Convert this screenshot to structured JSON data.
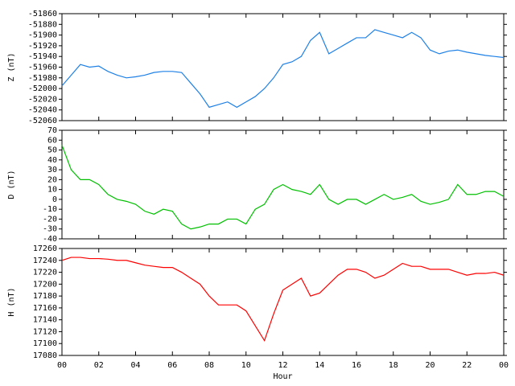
{
  "chart_data": [
    {
      "type": "line",
      "ylabel": "Z (nT)",
      "xlim": [
        0,
        24
      ],
      "ylim": [
        -52060,
        -51860
      ],
      "yticks": [
        -52060,
        -52040,
        -52020,
        -52000,
        -51980,
        -51960,
        -51940,
        -51920,
        -51900,
        -51880,
        -51860
      ],
      "x": [
        0,
        0.5,
        1,
        1.5,
        2,
        2.5,
        3,
        3.5,
        4,
        4.5,
        5,
        5.5,
        6,
        6.5,
        7,
        7.5,
        8,
        8.5,
        9,
        9.5,
        10,
        10.5,
        11,
        11.5,
        12,
        12.5,
        13,
        13.5,
        14,
        14.5,
        15,
        15.5,
        16,
        16.5,
        17,
        17.5,
        18,
        18.5,
        19,
        19.5,
        20,
        20.5,
        21,
        21.5,
        22,
        22.5,
        23,
        23.5,
        24
      ],
      "series": [
        {
          "name": "Z",
          "color": "#1e80e6",
          "values": [
            -51995,
            -51975,
            -51955,
            -51960,
            -51958,
            -51968,
            -51975,
            -51980,
            -51978,
            -51975,
            -51970,
            -51968,
            -51968,
            -51970,
            -51990,
            -52010,
            -52035,
            -52030,
            -52025,
            -52035,
            -52025,
            -52015,
            -52000,
            -51980,
            -51955,
            -51950,
            -51940,
            -51910,
            -51895,
            -51935,
            -51925,
            -51915,
            -51905,
            -51905,
            -51890,
            -51895,
            -51900,
            -51905,
            -51895,
            -51905,
            -51928,
            -51935,
            -51930,
            -51928,
            -51932,
            -51935,
            -51938,
            -51940,
            -51942
          ]
        }
      ]
    },
    {
      "type": "line",
      "ylabel": "D (nT)",
      "xlim": [
        0,
        24
      ],
      "ylim": [
        -40,
        70
      ],
      "yticks": [
        -40,
        -30,
        -20,
        -10,
        0,
        10,
        20,
        30,
        40,
        50,
        60,
        70
      ],
      "x": [
        0,
        0.5,
        1,
        1.5,
        2,
        2.5,
        3,
        3.5,
        4,
        4.5,
        5,
        5.5,
        6,
        6.5,
        7,
        7.5,
        8,
        8.5,
        9,
        9.5,
        10,
        10.5,
        11,
        11.5,
        12,
        12.5,
        13,
        13.5,
        14,
        14.5,
        15,
        15.5,
        16,
        16.5,
        17,
        17.5,
        18,
        18.5,
        19,
        19.5,
        20,
        20.5,
        21,
        21.5,
        22,
        22.5,
        23,
        23.5,
        24
      ],
      "series": [
        {
          "name": "D",
          "color": "#00c000",
          "values": [
            55,
            30,
            20,
            20,
            15,
            5,
            0,
            -2,
            -5,
            -12,
            -15,
            -10,
            -12,
            -25,
            -30,
            -28,
            -25,
            -25,
            -20,
            -20,
            -25,
            -10,
            -5,
            10,
            15,
            10,
            8,
            5,
            15,
            0,
            -5,
            0,
            0,
            -5,
            0,
            5,
            0,
            2,
            5,
            -2,
            -5,
            -3,
            0,
            15,
            5,
            5,
            8,
            8,
            3
          ]
        }
      ]
    },
    {
      "type": "line",
      "ylabel": "H (nT)",
      "xlabel": "Hour",
      "xlim": [
        0,
        24
      ],
      "ylim": [
        17080,
        17260
      ],
      "yticks": [
        17080,
        17100,
        17120,
        17140,
        17160,
        17180,
        17200,
        17220,
        17240,
        17260
      ],
      "xticks": [
        {
          "value": 0,
          "label": "00"
        },
        {
          "value": 2,
          "label": "02"
        },
        {
          "value": 4,
          "label": "04"
        },
        {
          "value": 6,
          "label": "06"
        },
        {
          "value": 8,
          "label": "08"
        },
        10,
        12,
        14,
        16,
        18,
        20,
        22,
        {
          "value": 24,
          "label": "00"
        }
      ],
      "x": [
        0,
        0.5,
        1,
        1.5,
        2,
        2.5,
        3,
        3.5,
        4,
        4.5,
        5,
        5.5,
        6,
        6.5,
        7,
        7.5,
        8,
        8.5,
        9,
        9.5,
        10,
        10.5,
        11,
        11.5,
        12,
        12.5,
        13,
        13.5,
        14,
        14.5,
        15,
        15.5,
        16,
        16.5,
        17,
        17.5,
        18,
        18.5,
        19,
        19.5,
        20,
        20.5,
        21,
        21.5,
        22,
        22.5,
        23,
        23.5,
        24
      ],
      "series": [
        {
          "name": "H",
          "color": "#ff0000",
          "values": [
            17240,
            17245,
            17245,
            17243,
            17243,
            17242,
            17240,
            17240,
            17236,
            17232,
            17230,
            17228,
            17228,
            17220,
            17210,
            17200,
            17180,
            17165,
            17165,
            17165,
            17155,
            17130,
            17105,
            17150,
            17190,
            17200,
            17210,
            17180,
            17185,
            17200,
            17215,
            17225,
            17225,
            17220,
            17210,
            17215,
            17225,
            17235,
            17230,
            17230,
            17225,
            17225,
            17225,
            17220,
            17215,
            17218,
            17218,
            17220,
            17215
          ]
        }
      ]
    }
  ]
}
